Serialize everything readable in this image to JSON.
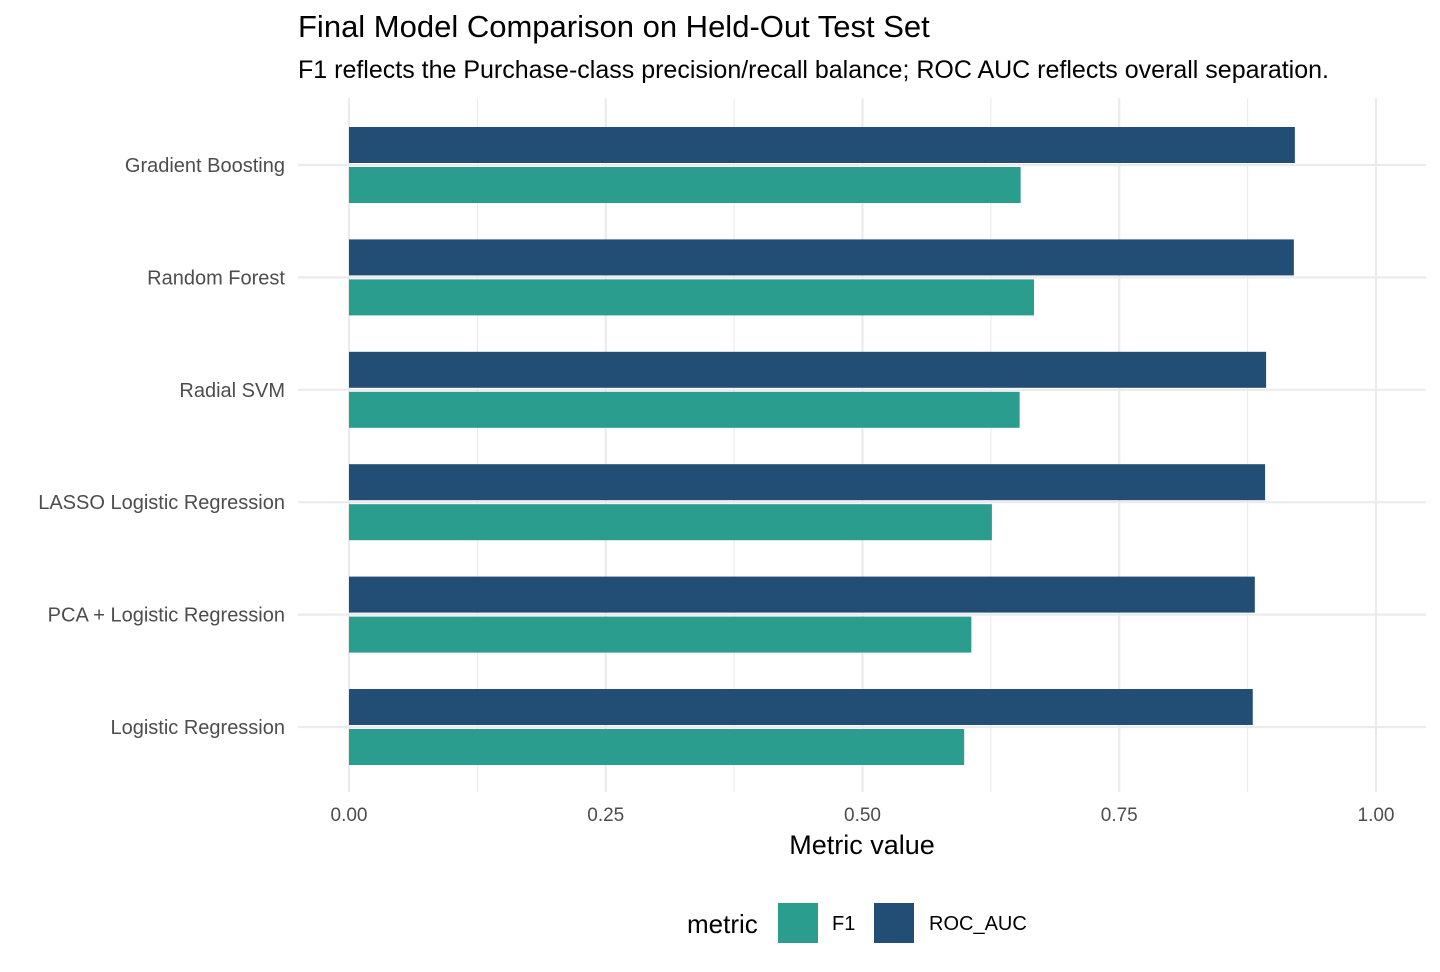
{
  "chart_data": {
    "type": "bar",
    "orientation": "horizontal",
    "title": "Final Model Comparison on Held-Out Test Set",
    "subtitle": "F1 reflects the Purchase-class precision/recall balance; ROC AUC reflects overall separation.",
    "xlabel": "Metric value",
    "ylabel": "",
    "xlim": [
      0,
      1
    ],
    "x_ticks": [
      "0.00",
      "0.25",
      "0.50",
      "0.75",
      "1.00"
    ],
    "x_tick_values": [
      0,
      0.25,
      0.5,
      0.75,
      1.0
    ],
    "grid": true,
    "legend_position": "bottom",
    "legend_title": "metric",
    "categories": [
      "Gradient Boosting",
      "Random Forest",
      "Radial SVM",
      "LASSO Logistic Regression",
      "PCA + Logistic Regression",
      "Logistic Regression"
    ],
    "series": [
      {
        "name": "F1",
        "color": "#2a9d8f",
        "values": [
          0.654,
          0.667,
          0.653,
          0.626,
          0.606,
          0.599
        ]
      },
      {
        "name": "ROC_AUC",
        "color": "#224e75",
        "values": [
          0.921,
          0.92,
          0.893,
          0.892,
          0.882,
          0.88
        ]
      }
    ]
  }
}
